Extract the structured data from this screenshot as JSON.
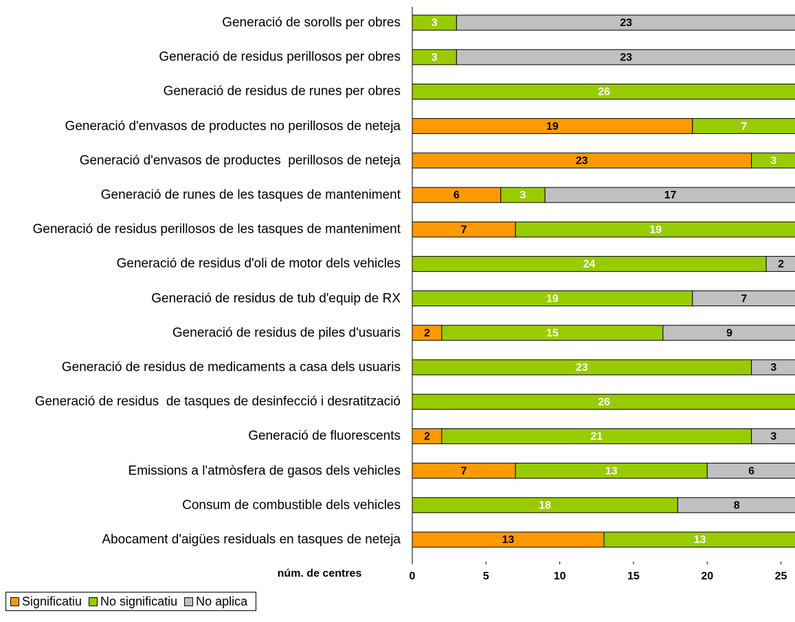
{
  "chart_data": {
    "type": "stacked-barh",
    "categories": [
      "Generació de sorolls per obres",
      "Generació de residus perillosos per obres",
      "Generació de residus de runes per obres",
      "Generació d'envasos de productes no perillosos de neteja",
      "Generació d'envasos de productes  perillosos de neteja",
      "Generació de runes de les tasques de manteniment",
      "Generació de residus perillosos de les tasques de manteniment",
      "Generació de residus d'oli de motor dels vehicles",
      "Generació de residus de tub d'equip de RX",
      "Generació de residus de piles d'usuaris",
      "Generació de residus de medicaments a casa dels usuaris",
      "Generació de residus  de tasques de desinfecció i desratització",
      "Generació de fluorescents",
      "Emissions a l'atmòsfera de gasos dels vehicles",
      "Consum de combustible dels vehicles",
      "Abocament d'aigües residuals en tasques de neteja"
    ],
    "series": [
      {
        "name": "Significatiu",
        "color": "#ff9900",
        "values": [
          0,
          0,
          0,
          19,
          23,
          6,
          7,
          0,
          0,
          2,
          0,
          0,
          2,
          7,
          0,
          13
        ]
      },
      {
        "name": "No significatiu",
        "color": "#99cc00",
        "values": [
          3,
          3,
          26,
          7,
          3,
          3,
          19,
          24,
          19,
          15,
          23,
          26,
          21,
          13,
          18,
          13
        ]
      },
      {
        "name": "No aplica",
        "color": "#c0c0c0",
        "values": [
          23,
          23,
          0,
          0,
          0,
          17,
          0,
          2,
          7,
          9,
          3,
          0,
          3,
          6,
          8,
          0
        ]
      }
    ],
    "xlabel": "núm. de centres",
    "xlim": [
      0,
      26
    ],
    "xticks": [
      0,
      5,
      10,
      15,
      20,
      25
    ]
  }
}
